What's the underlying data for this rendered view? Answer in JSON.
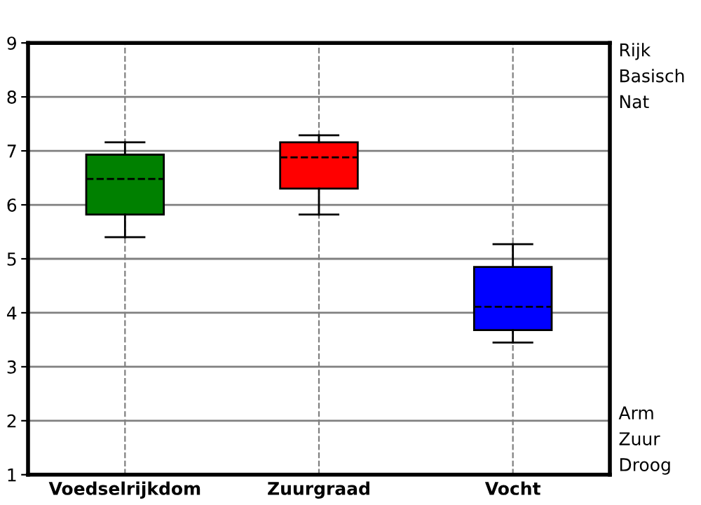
{
  "chart_data": {
    "type": "box",
    "categories": [
      "Voedselrijkdom",
      "Zuurgraad",
      "Vocht"
    ],
    "boxes": [
      {
        "low": 5.4,
        "q1": 5.82,
        "median": 6.48,
        "q3": 6.93,
        "high": 7.16
      },
      {
        "low": 5.82,
        "q1": 6.3,
        "median": 6.88,
        "q3": 7.16,
        "high": 7.29
      },
      {
        "low": 3.45,
        "q1": 3.68,
        "median": 4.11,
        "q3": 4.85,
        "high": 5.27
      }
    ],
    "colors": [
      "#008000",
      "#ff0000",
      "#0000ff"
    ],
    "ylim": [
      1,
      9
    ],
    "yticks": [
      1,
      2,
      3,
      4,
      5,
      6,
      7,
      8,
      9
    ],
    "grid": true,
    "annotations": [
      "Rijk",
      "Basisch",
      "Nat",
      "Arm",
      "Zuur",
      "Droog"
    ]
  }
}
